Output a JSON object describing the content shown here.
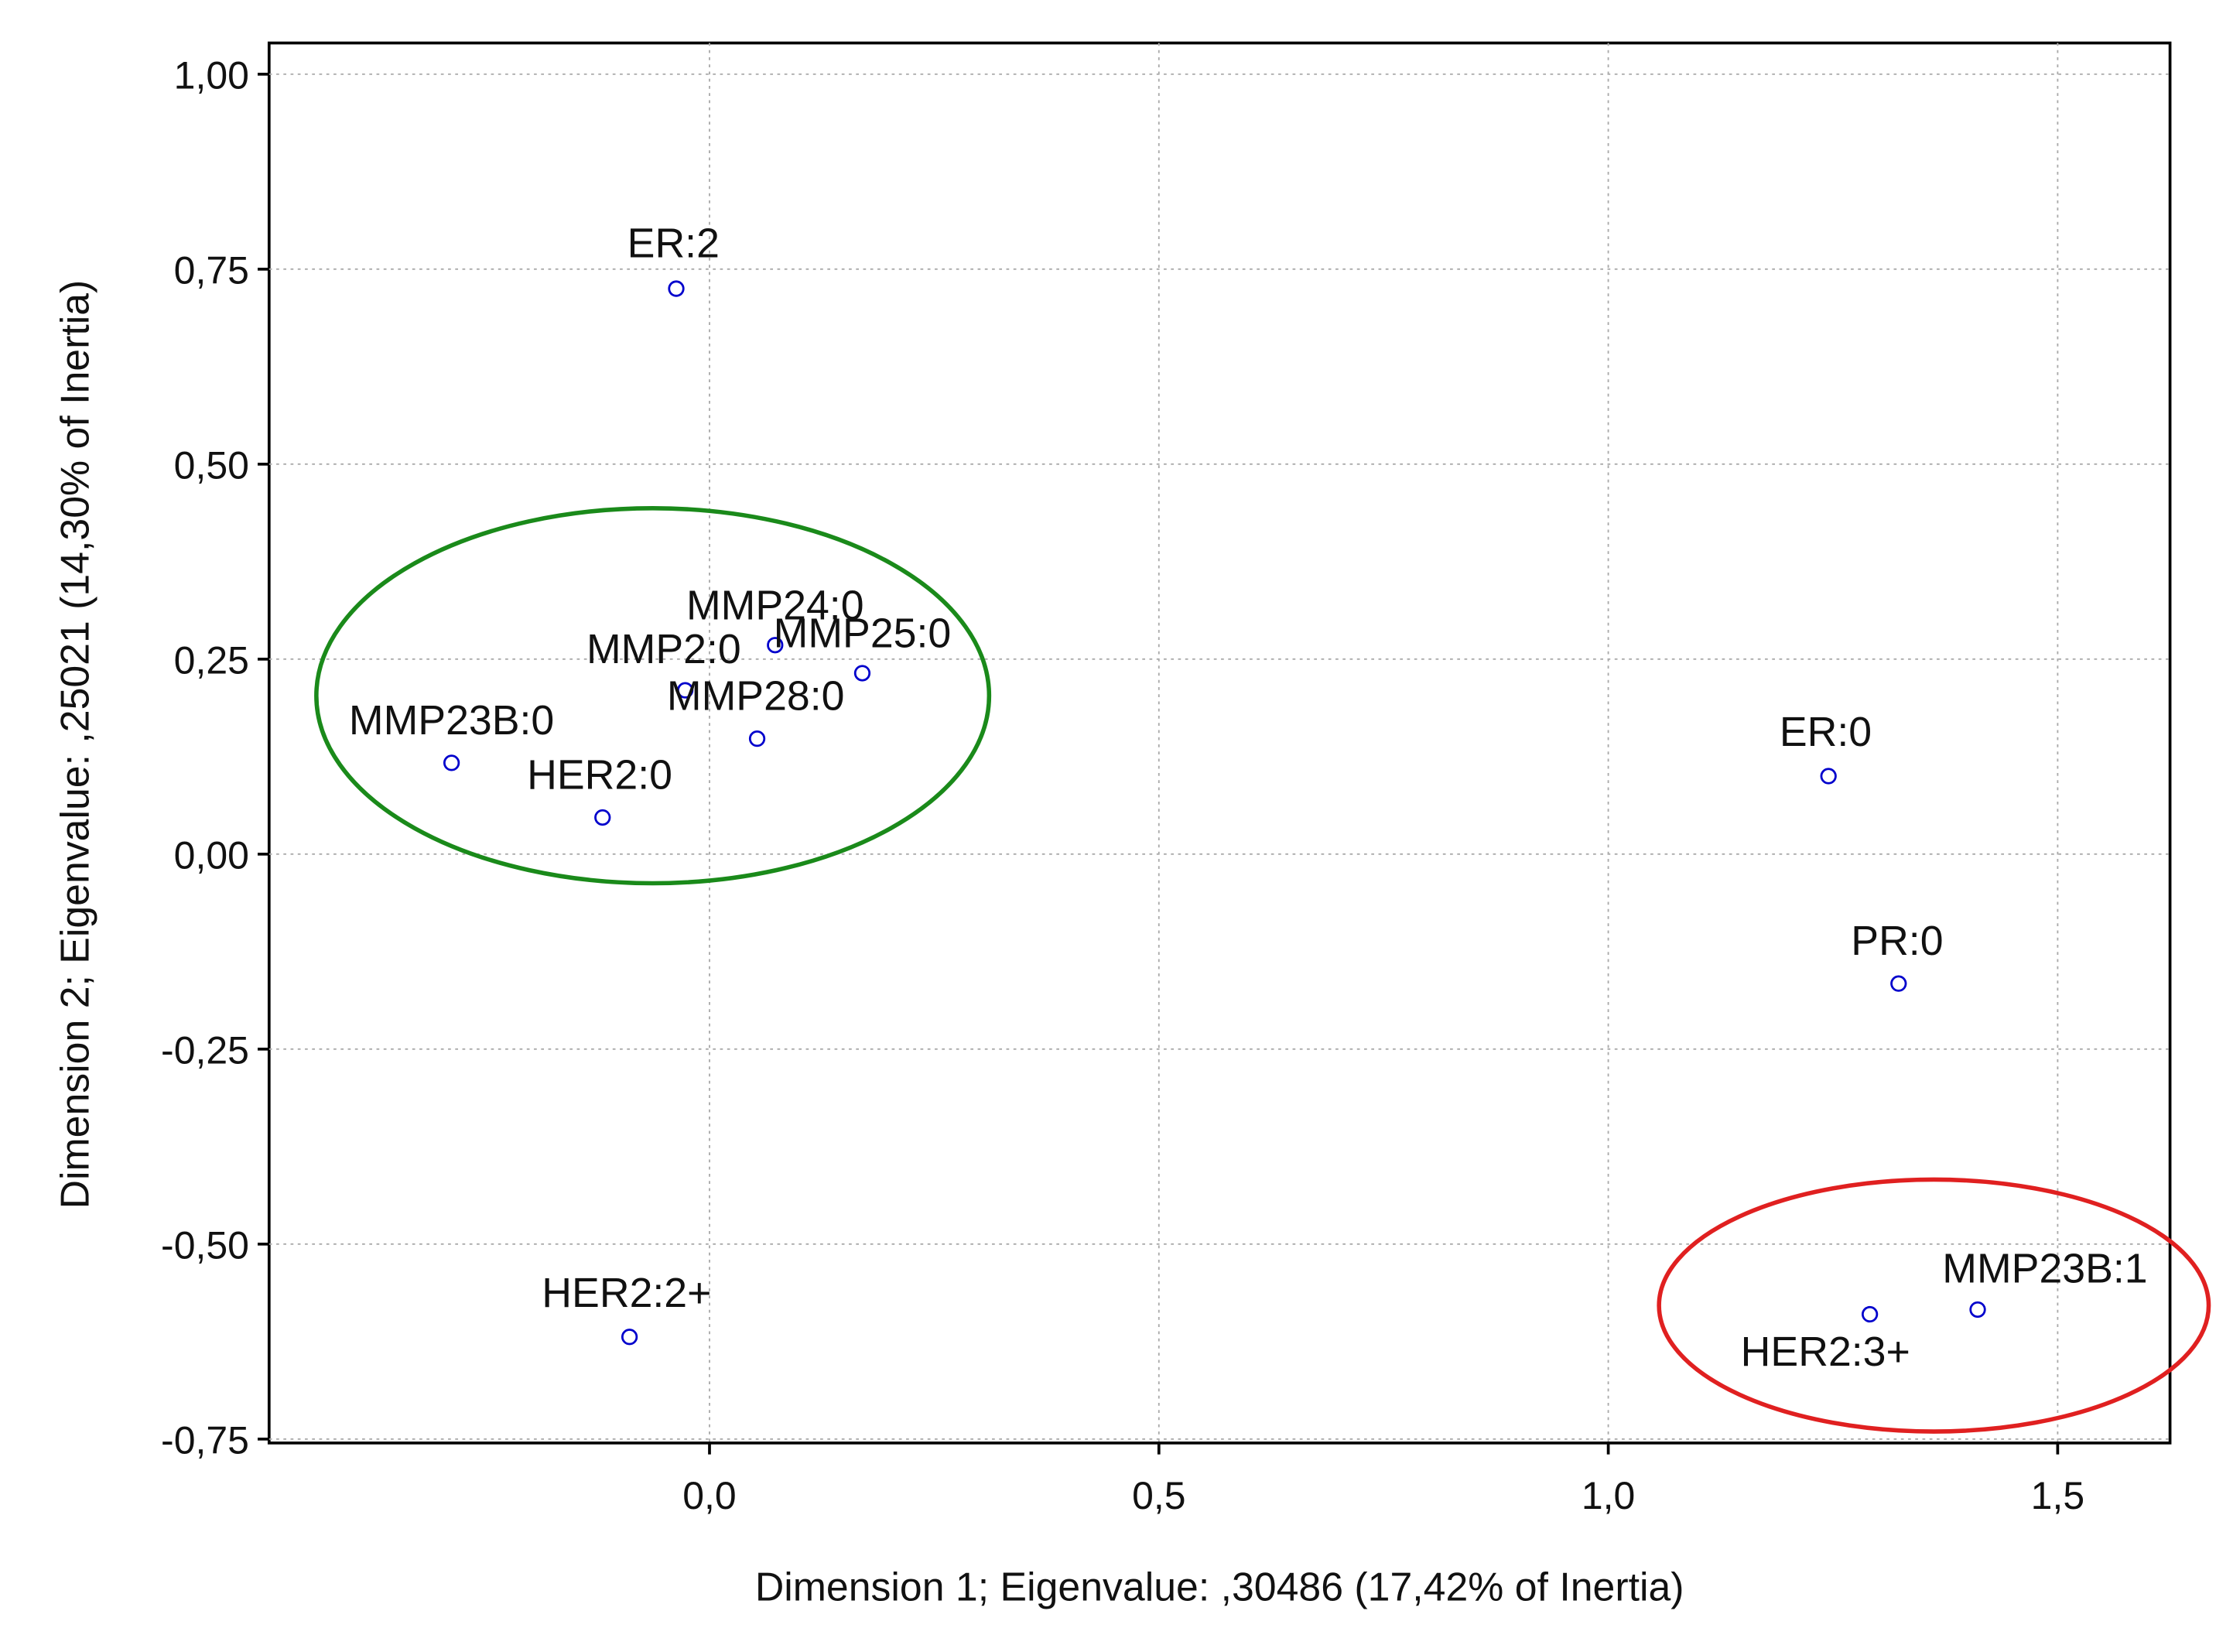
{
  "chart_data": {
    "type": "scatter",
    "x_label": "Dimension 1; Eigenvalue: ,30486 (17,42% of Inertia)",
    "y_label": "Dimension 2; Eigenvalue: ,25021 (14,30% of Inertia)",
    "xlim": [
      -0.49,
      1.625
    ],
    "ylim": [
      -0.755,
      1.04
    ],
    "xticks": [
      {
        "value": 0,
        "label": "0,0"
      },
      {
        "value": 0.5,
        "label": "0,5"
      },
      {
        "value": 1,
        "label": "1,0"
      },
      {
        "value": 1.5,
        "label": "1,5"
      }
    ],
    "yticks": [
      {
        "value": -0.75,
        "label": "-0,75"
      },
      {
        "value": -0.5,
        "label": "-0,50"
      },
      {
        "value": -0.25,
        "label": "-0,25"
      },
      {
        "value": 0,
        "label": "0,00"
      },
      {
        "value": 0.25,
        "label": "0,25"
      },
      {
        "value": 0.5,
        "label": "0,50"
      },
      {
        "value": 0.75,
        "label": "0,75"
      },
      {
        "value": 1,
        "label": "1,00"
      }
    ],
    "grid": true,
    "color": "#0000cc",
    "labels": [
      "ER:2",
      "MMP24:0",
      "MMP25:0",
      "MMP2:0",
      "MMP28:0",
      "MMP23B:0",
      "HER2:0",
      "ER:0",
      "PR:0",
      "HER2:2+",
      "HER2:3+",
      "MMP23B:1"
    ],
    "x": [
      -0.037,
      0.073,
      0.17,
      -0.027,
      0.053,
      -0.287,
      -0.119,
      1.245,
      1.323,
      -0.089,
      1.291,
      1.411
    ],
    "values": [
      0.725,
      0.268,
      0.232,
      0.21,
      0.148,
      0.117,
      0.047,
      0.1,
      -0.166,
      -0.619,
      -0.59,
      -0.584
    ]
  }
}
